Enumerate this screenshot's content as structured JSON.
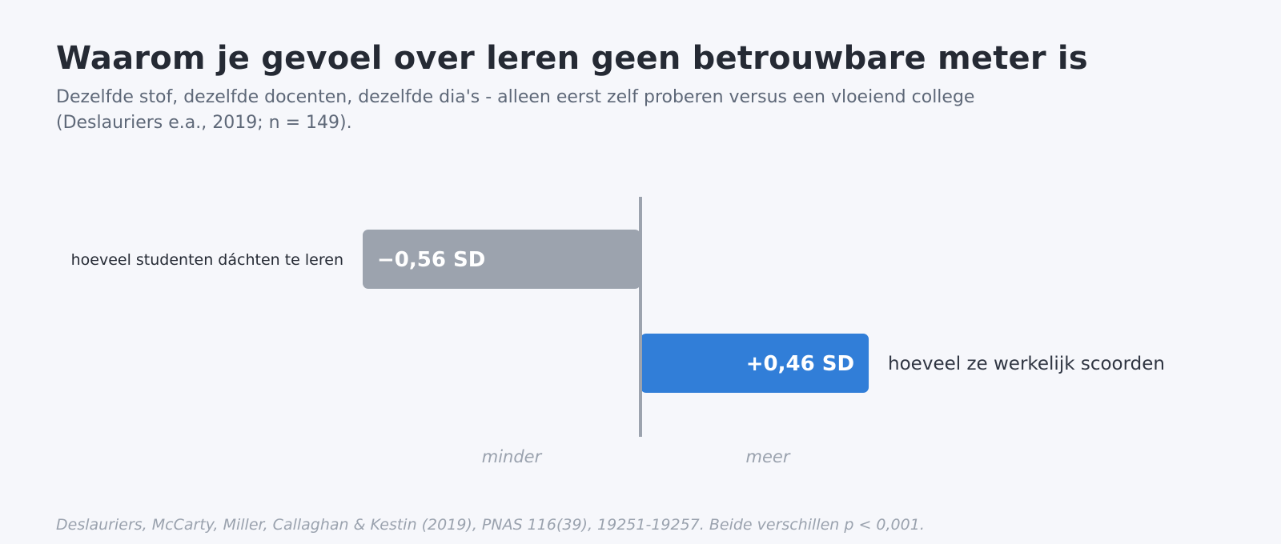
{
  "title": "Waarom je gevoel over leren geen betrouwbare meter is",
  "subtitle": "Dezelfde stof, dezelfde docenten, dezelfde dia's - alleen eerst zelf proberen versus een vloeiend college (Deslauriers e.a., 2019; n = 149).",
  "footer": "Deslauriers, McCarty, Miller, Callaghan & Kestin (2019), PNAS 116(39), 19251-19257. Beide verschillen p < 0,001.",
  "chart_data": {
    "type": "bar",
    "orientation": "horizontal",
    "unit": "SD",
    "xlim": [
      -0.95,
      1.0
    ],
    "categories": [
      "hoeveel studenten dáchten te leren",
      "hoeveel ze werkelijk scoorden"
    ],
    "values": [
      -0.56,
      0.46
    ],
    "value_labels": [
      "−0,56 SD",
      "+0,46 SD"
    ],
    "colors": [
      "#9ca3ae",
      "#317ed8"
    ],
    "axis_labels": {
      "negative": "minder",
      "positive": "meer"
    },
    "zero_line_color": "#9ca3ae",
    "grid": false,
    "legend": "none"
  }
}
